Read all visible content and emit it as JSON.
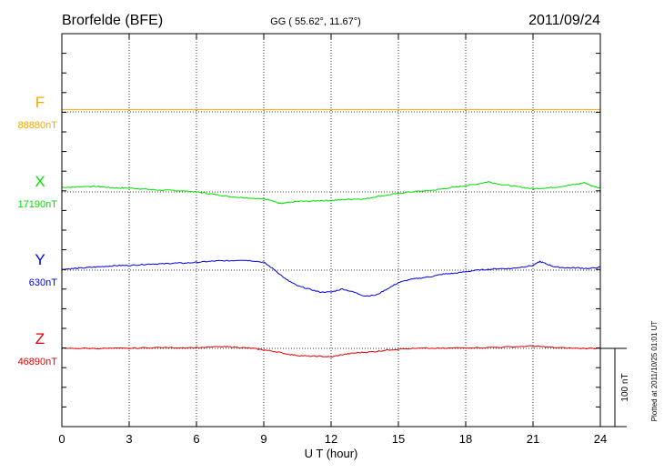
{
  "chart_data": {
    "type": "line",
    "title": "Brorfelde (BFE)",
    "subtitle": "GG ( 55.62°,  11.67°)",
    "date": "2011/09/24",
    "xlabel": "U T (hour)",
    "xlim": [
      0,
      24
    ],
    "x_ticks": [
      "0",
      "3",
      "6",
      "9",
      "12",
      "15",
      "18",
      "21",
      "24"
    ],
    "grid": true,
    "scale_bar_label": "100 nT",
    "scale_bar_nT": 100,
    "footnote": "Plotted at 2011/10/25 01:01 UT",
    "series": [
      {
        "name": "F",
        "baseline_label": "88880nT",
        "color": "#f0a800",
        "x": [
          0,
          24
        ],
        "y": [
          3,
          3
        ]
      },
      {
        "name": "X",
        "baseline_label": "17190nT",
        "color": "#00e000",
        "x": [
          0,
          0.5,
          1,
          1.5,
          2,
          2.5,
          3,
          3.5,
          4,
          4.5,
          5,
          5.5,
          6,
          6.5,
          7,
          7.5,
          8,
          8.5,
          9,
          9.3,
          9.6,
          9.8,
          10,
          10.5,
          11,
          11.5,
          12,
          12.5,
          13,
          13.5,
          14,
          14.5,
          15,
          15.5,
          16,
          16.5,
          17,
          17.5,
          18,
          18.5,
          19,
          19.5,
          20,
          20.5,
          21,
          21.5,
          22,
          22.5,
          23,
          23.3,
          23.6,
          24
        ],
        "y": [
          6,
          6,
          7,
          7,
          6,
          5,
          5,
          4,
          3,
          2,
          2,
          1,
          0,
          -2,
          -4,
          -6,
          -7,
          -8,
          -9,
          -10,
          -14,
          -15,
          -14,
          -12,
          -12,
          -11,
          -11,
          -10,
          -9,
          -9,
          -6,
          -4,
          -2,
          0,
          1,
          2,
          4,
          6,
          8,
          10,
          13,
          10,
          8,
          6,
          4,
          5,
          6,
          8,
          10,
          12,
          8,
          5
        ]
      },
      {
        "name": "Y",
        "baseline_label": "630nT",
        "color": "#0000e0",
        "x": [
          0,
          0.5,
          1,
          1.5,
          2,
          2.5,
          3,
          3.5,
          4,
          4.5,
          5,
          5.5,
          6,
          6.5,
          7,
          7.5,
          8,
          8.5,
          9,
          9.5,
          10,
          10.5,
          11,
          11.5,
          12,
          12.5,
          13,
          13.5,
          14,
          14.5,
          15,
          15.5,
          16,
          16.5,
          17,
          17.5,
          18,
          18.5,
          19,
          19.5,
          20,
          20.5,
          21,
          21.3,
          21.6,
          22,
          22.5,
          23,
          23.5,
          24
        ],
        "y": [
          1,
          2,
          3,
          4,
          5,
          6,
          6,
          7,
          8,
          8,
          9,
          9,
          10,
          11,
          12,
          12,
          13,
          12,
          10,
          0,
          -12,
          -20,
          -24,
          -28,
          -28,
          -24,
          -28,
          -33,
          -32,
          -24,
          -16,
          -12,
          -10,
          -8,
          -5,
          -4,
          -2,
          0,
          1,
          2,
          2,
          4,
          6,
          11,
          8,
          4,
          3,
          3,
          2,
          4
        ]
      },
      {
        "name": "Z",
        "baseline_label": "46890nT",
        "color": "#e00000",
        "x": [
          0,
          1,
          2,
          3,
          4,
          5,
          6,
          7,
          7.5,
          8,
          8.5,
          9,
          9.5,
          10,
          10.5,
          11,
          11.5,
          12,
          12.5,
          13,
          13.5,
          14,
          14.5,
          15,
          16,
          17,
          18,
          19,
          20,
          21,
          21.5,
          22,
          23,
          24
        ],
        "y": [
          0,
          0,
          0,
          0,
          1,
          1,
          1,
          2,
          2,
          1,
          0,
          -2,
          -4,
          -7,
          -9,
          -10,
          -10,
          -11,
          -8,
          -6,
          -5,
          -4,
          -2,
          -1,
          0,
          0,
          1,
          1,
          2,
          3,
          2,
          1,
          0,
          0
        ]
      }
    ]
  }
}
